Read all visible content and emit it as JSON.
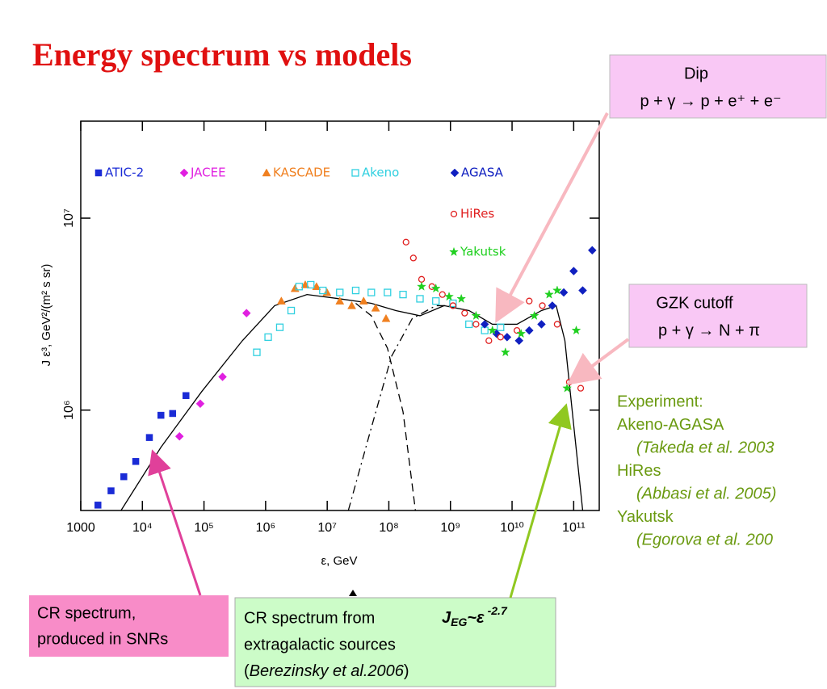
{
  "slide": {
    "title": "Energy spectrum vs models",
    "dip": {
      "line1": "Dip",
      "line2": "p + γ → p + e⁺ + e⁻"
    },
    "gzk": {
      "line1": "GZK cutoff",
      "line2": "p + γ → N + π"
    },
    "experiment": [
      "Experiment:",
      "Akeno-AGASA",
      "(Takeda et al. 2003",
      "HiRes",
      "(Abbasi et al. 2005)",
      "Yakutsk",
      "(Egorova et al. 200"
    ],
    "snr": {
      "line1": "CR spectrum,",
      "line2": "produced in SNRs"
    },
    "eg": {
      "line1": "CR spectrum from",
      "formula": {
        "base": "J",
        "sub": "EG",
        "mid": "~ε",
        "sup": "-2.7"
      },
      "line2": "extragalactic sources",
      "line3": {
        "open": "(",
        "ref": "Berezinsky et al.2006",
        "close": ")"
      }
    }
  },
  "chart_data": {
    "type": "scatter",
    "x_label": "ε, GeV",
    "y_label": "J ε³, GeV²/(m² s sr)",
    "xscale": "log",
    "yscale": "log",
    "xlim": [
      1000,
      260000000000
    ],
    "ylim": [
      300000,
      32000000
    ],
    "xticks": [
      1000,
      {
        "value": 10000,
        "label": "10⁴"
      },
      {
        "value": 100000,
        "label": "10⁵"
      },
      {
        "value": 1000000,
        "label": "10⁶"
      },
      {
        "value": 10000000,
        "label": "10⁷"
      },
      {
        "value": 100000000,
        "label": "10⁸"
      },
      {
        "value": 1000000000,
        "label": "10⁹"
      },
      {
        "value": 10000000000,
        "label": "10¹⁰"
      },
      {
        "value": 100000000000,
        "label": "10¹¹"
      }
    ],
    "yticks": [
      {
        "value": 1000000,
        "label": "10⁶"
      },
      {
        "value": 10000000,
        "label": "10⁷"
      }
    ],
    "series": [
      {
        "name": "ATIC-2",
        "color": "#1a2bd6",
        "marker": "square",
        "x": [
          1900,
          3100,
          5000,
          7800,
          13000,
          20000,
          31000,
          51000
        ],
        "values": [
          320000,
          380000,
          450000,
          540000,
          720000,
          940000,
          960000,
          1190000
        ]
      },
      {
        "name": "JACEE",
        "color": "#e020e0",
        "marker": "diamond",
        "x": [
          40000,
          87000,
          200000,
          490000
        ],
        "values": [
          730000,
          1080000,
          1490000,
          3200000
        ]
      },
      {
        "name": "KASCADE",
        "color": "#f08020",
        "marker": "triangle",
        "x": [
          1800000,
          3000000,
          4400000,
          6700000,
          9900000,
          16000000,
          25000000,
          39000000,
          61000000,
          90000000
        ],
        "values": [
          3700000,
          4300000,
          4500000,
          4400000,
          4100000,
          3700000,
          3500000,
          3700000,
          3400000,
          3000000
        ]
      },
      {
        "name": "Akeno",
        "color": "#30d0e0",
        "marker": "open-square",
        "x": [
          720000,
          1100000,
          1700000,
          2600000,
          3500000,
          5400000,
          8500000,
          16000000,
          29000000,
          52000000,
          95000000,
          170000000,
          320000000,
          580000000,
          1100000000,
          2000000000,
          3600000000,
          6500000000
        ],
        "values": [
          2000000,
          2400000,
          2700000,
          3300000,
          4400000,
          4500000,
          4200000,
          4100000,
          4200000,
          4100000,
          4100000,
          4000000,
          3800000,
          3700000,
          3600000,
          2800000,
          2600000,
          2700000
        ]
      },
      {
        "name": "AGASA",
        "color": "#1020c0",
        "marker": "diamond",
        "x": [
          3600000000,
          5600000000,
          8300000000,
          13000000000,
          19000000000,
          30000000000,
          45000000000,
          69000000000,
          100000000000,
          140000000000,
          200000000000
        ],
        "values": [
          2800000,
          2500000,
          2400000,
          2300000,
          2600000,
          2800000,
          3500000,
          4100000,
          5300000,
          4200000,
          6800000
        ]
      },
      {
        "name": "HiRes",
        "color": "#e02020",
        "marker": "open-circle",
        "x": [
          190000000,
          250000000,
          340000000,
          500000000,
          740000000,
          1100000000,
          1700000000,
          2600000000,
          4200000000,
          6500000000,
          12000000000,
          19000000000,
          31000000000,
          54000000000,
          85000000000,
          130000000000
        ],
        "values": [
          7500000,
          6200000,
          4800000,
          4400000,
          4000000,
          3500000,
          3200000,
          2800000,
          2300000,
          2400000,
          2600000,
          3700000,
          3500000,
          2800000,
          1400000,
          1300000
        ]
      },
      {
        "name": "Yakutsk",
        "color": "#20d020",
        "marker": "star",
        "x": [
          340000000,
          580000000,
          950000000,
          1500000000,
          2600000000,
          4800000000,
          7800000000,
          14000000000,
          23000000000,
          40000000000,
          54000000000,
          78000000000,
          110000000000
        ],
        "values": [
          4400000,
          4300000,
          3900000,
          3800000,
          3100000,
          2600000,
          2000000,
          2500000,
          3100000,
          4000000,
          4200000,
          1300000,
          2600000
        ]
      }
    ],
    "lines": [
      {
        "style": "solid",
        "x": [
          4500,
          20000,
          92000,
          420000,
          1400000,
          4700000,
          16000000,
          52000000,
          130000000,
          320000000,
          790000000,
          2000000000,
          4800000000,
          12000000000,
          30000000000,
          52000000000,
          72000000000,
          98000000000,
          140000000000
        ],
        "values": [
          300000,
          640000,
          1250000,
          2300000,
          3500000,
          4000000,
          3800000,
          3600000,
          3300000,
          3100000,
          3500000,
          3300000,
          2800000,
          2800000,
          3300000,
          3500000,
          2300000,
          890000,
          300000
        ]
      },
      {
        "style": "dashed",
        "x": [
          29000000,
          52000000,
          95000000,
          170000000,
          270000000
        ],
        "values": [
          3600000,
          3100000,
          2100000,
          980000,
          300000
        ]
      },
      {
        "style": "dashdot",
        "x": [
          22000000,
          52000000,
          110000000,
          240000000,
          580000000,
          1100000000
        ],
        "values": [
          300000,
          810000,
          1900000,
          3000000,
          3500000,
          3500000
        ]
      }
    ]
  }
}
